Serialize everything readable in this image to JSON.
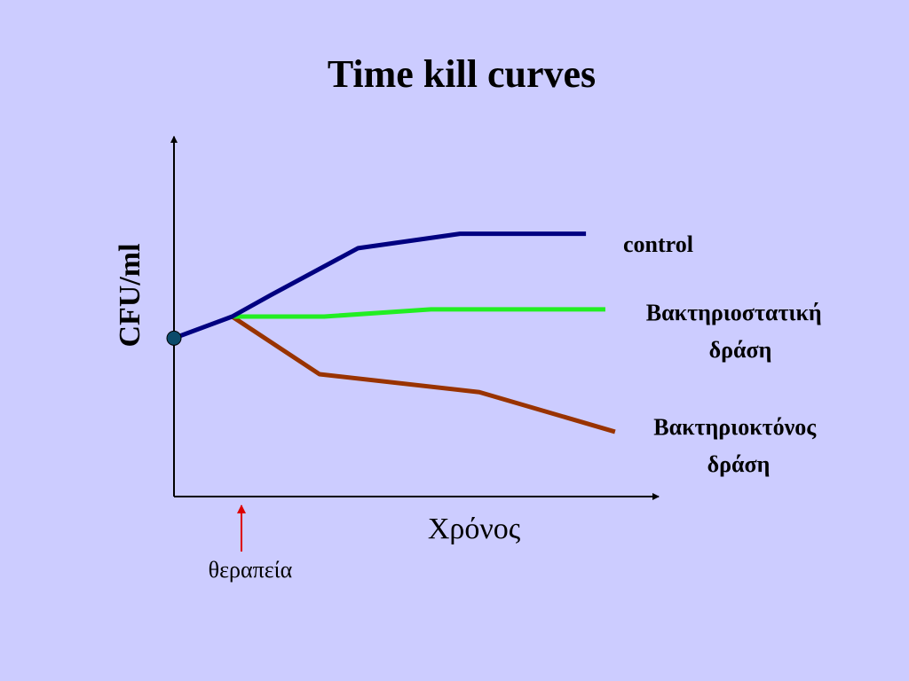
{
  "slide": {
    "title": "Time kill curves"
  },
  "chart_data": {
    "type": "line",
    "title": "Time kill curves",
    "xlabel": "Χρόνος",
    "ylabel": "CFU/ml",
    "xlim": [
      0,
      10
    ],
    "ylim": [
      0,
      10
    ],
    "legend": "right, inline labels at line ends",
    "annotation": {
      "text": "θεραπεία",
      "x": 1.4,
      "color": "#dd0000"
    },
    "start_point": {
      "x": 0,
      "y": 4.4,
      "color": "#0b4a6a"
    },
    "series": [
      {
        "name": "control",
        "color": "#000080",
        "points": [
          [
            0,
            4.4
          ],
          [
            1.2,
            5.0
          ],
          [
            2.0,
            5.6
          ],
          [
            3.8,
            6.9
          ],
          [
            5.9,
            7.3
          ],
          [
            8.5,
            7.3
          ]
        ]
      },
      {
        "name": "Βακτηριοστατική δράση",
        "label_lines": [
          "Βακτηριοστατική",
          "δράση"
        ],
        "color": "#22ee22",
        "points": [
          [
            1.2,
            5.0
          ],
          [
            3.1,
            5.0
          ],
          [
            5.3,
            5.2
          ],
          [
            8.9,
            5.2
          ]
        ]
      },
      {
        "name": "Βακτηριοκτόνος δράση",
        "label_lines": [
          "Βακτηριοκτόνος",
          "δράση"
        ],
        "color": "#993300",
        "points": [
          [
            1.2,
            5.0
          ],
          [
            3.0,
            3.4
          ],
          [
            6.3,
            2.9
          ],
          [
            9.1,
            1.8
          ]
        ]
      }
    ]
  }
}
